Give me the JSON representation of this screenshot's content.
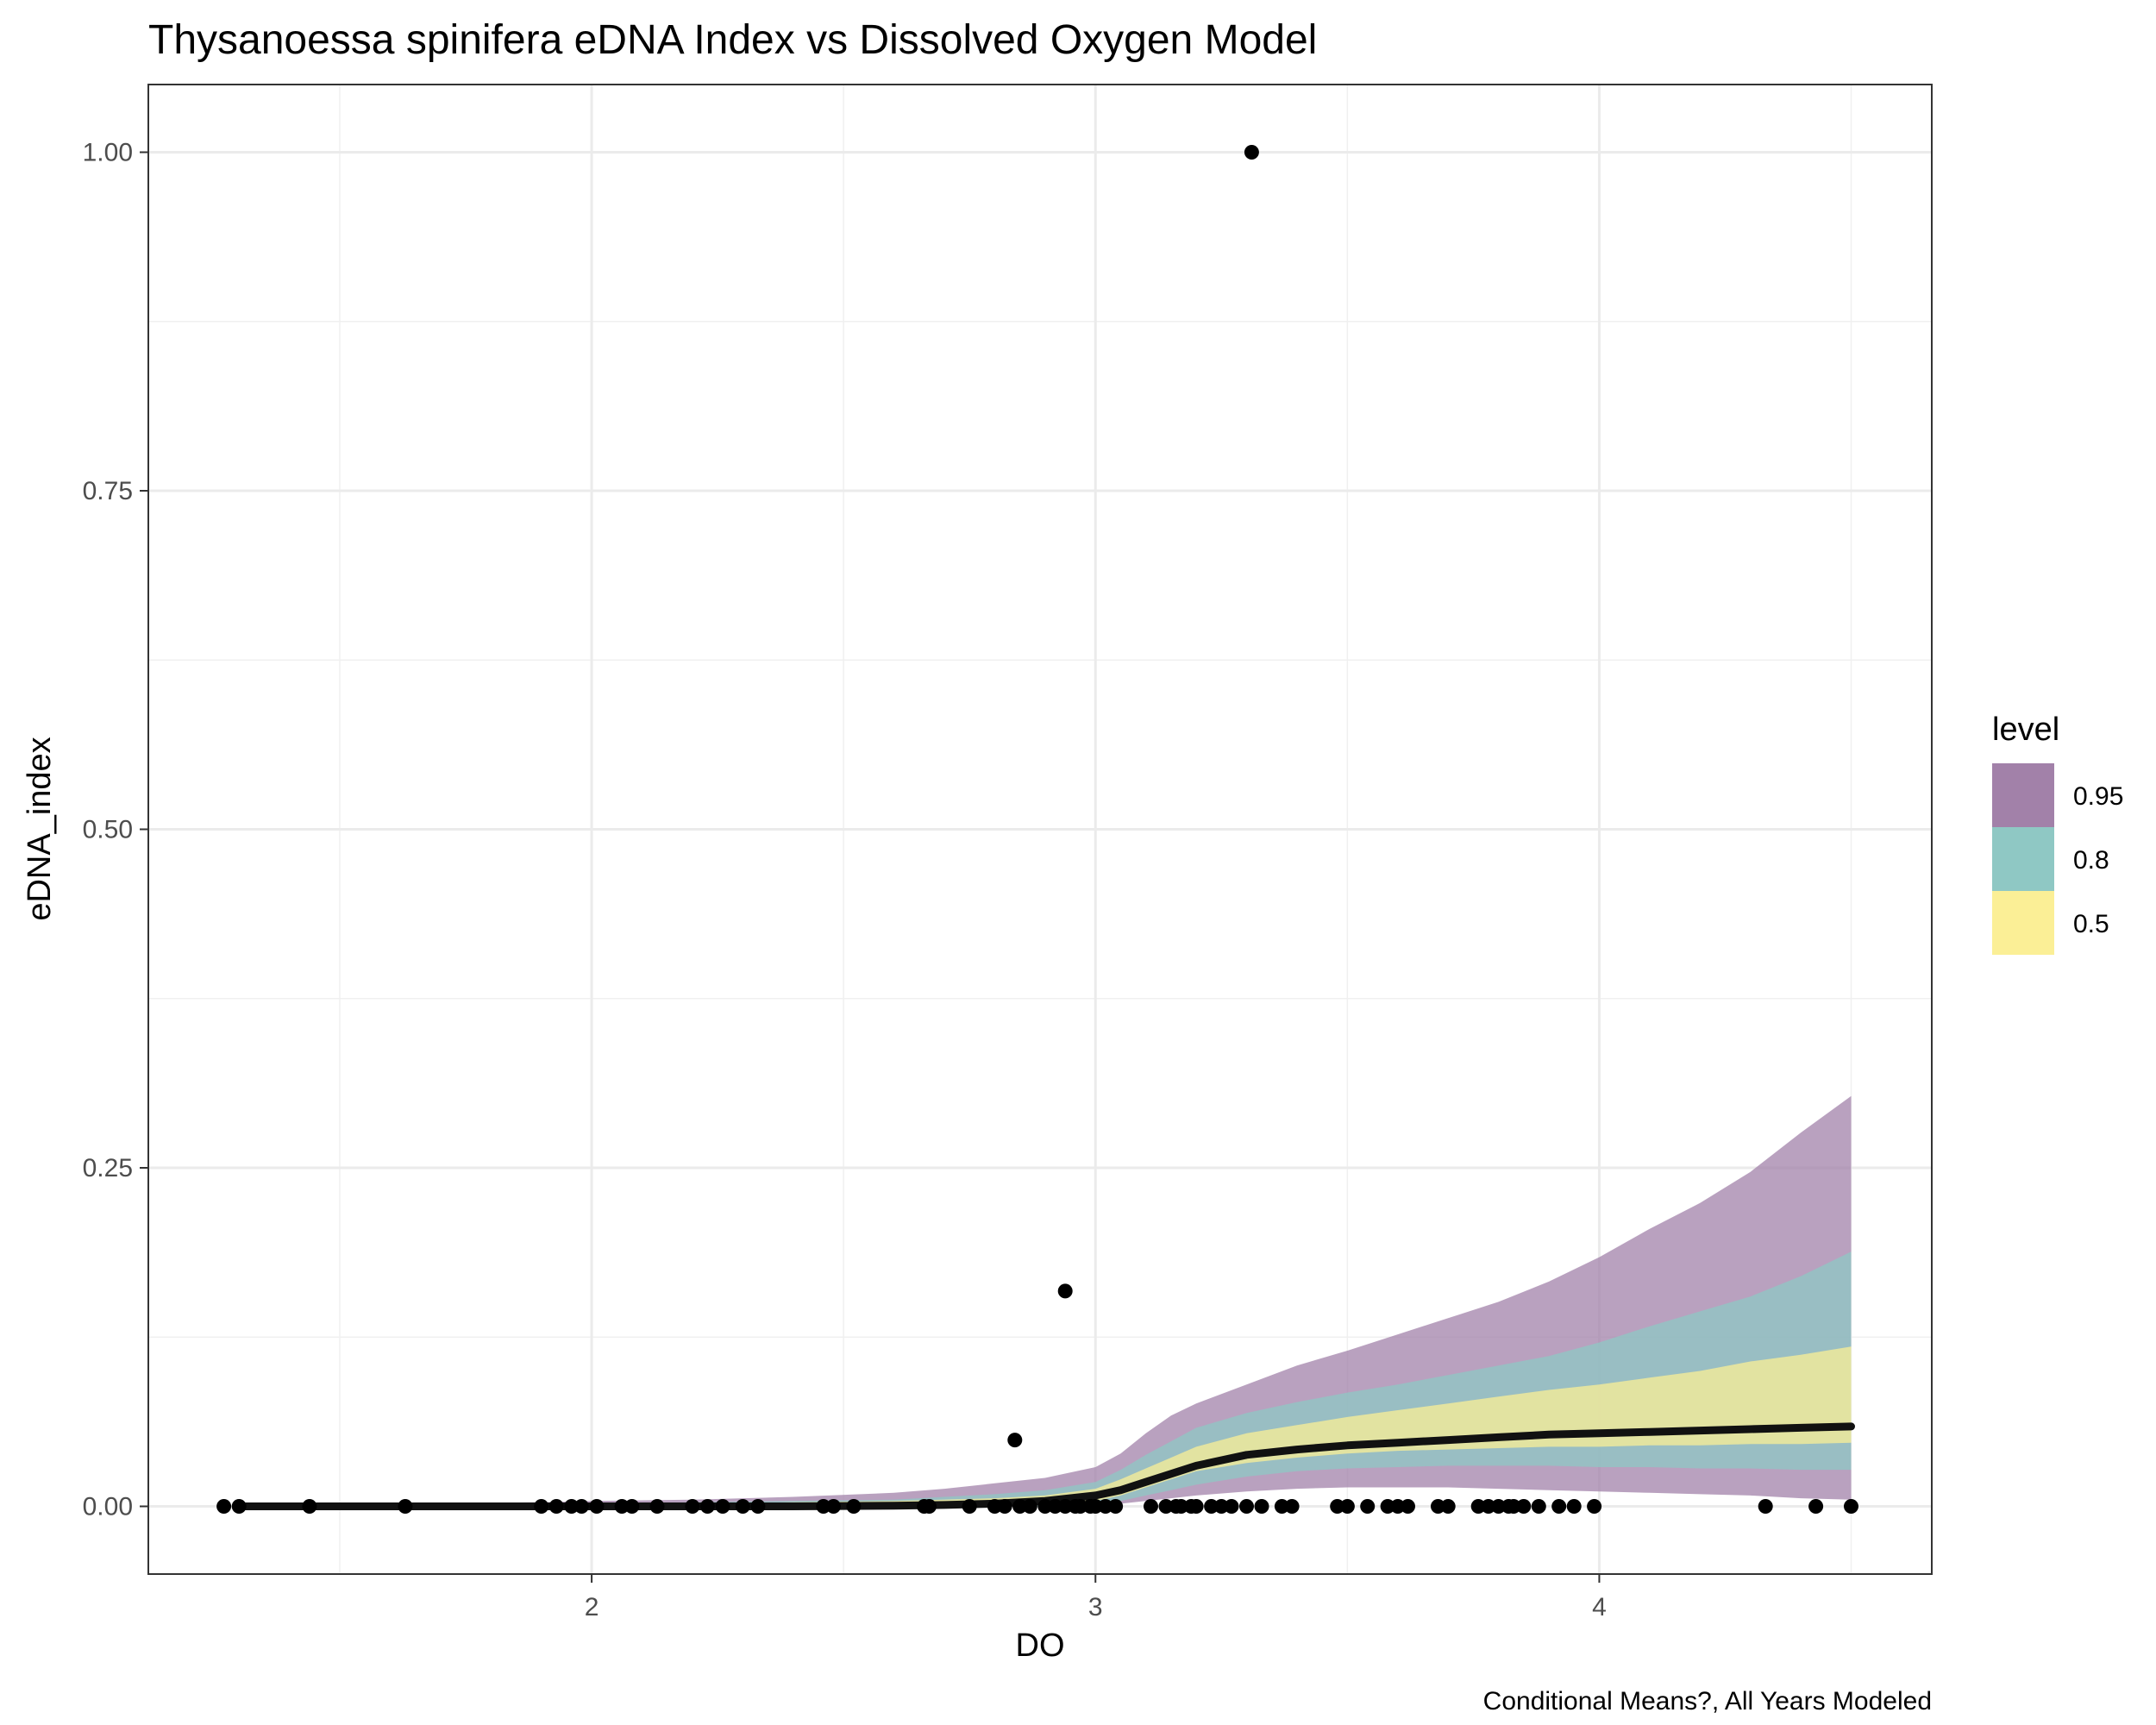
{
  "chart_data": {
    "type": "line",
    "title": "Thysanoessa spinifera eDNA Index vs Dissolved Oxygen Model",
    "xlabel": "DO",
    "ylabel": "eDNA_index",
    "caption": "Conditional Means?, All Years Modeled",
    "xlim": [
      1.12,
      4.66
    ],
    "ylim": [
      -0.05,
      1.05
    ],
    "x_ticks": [
      2,
      3,
      4
    ],
    "x_tick_labels": [
      "2",
      "3",
      "4"
    ],
    "y_ticks": [
      0,
      0.25,
      0.5,
      0.75,
      1.0
    ],
    "y_tick_labels": [
      "0.00",
      "0.25",
      "0.50",
      "0.75",
      "1.00"
    ],
    "grid": true,
    "legend": {
      "title": "level",
      "position": "right",
      "entries": [
        {
          "label": "0.95",
          "color": "#a281a9"
        },
        {
          "label": "0.8",
          "color": "#8fc8c4"
        },
        {
          "label": "0.5",
          "color": "#fbef96"
        }
      ]
    },
    "band_x": [
      1.3,
      1.6,
      1.9,
      2.0,
      2.2,
      2.4,
      2.6,
      2.7,
      2.8,
      2.9,
      3.0,
      3.05,
      3.1,
      3.15,
      3.2,
      3.3,
      3.4,
      3.5,
      3.6,
      3.7,
      3.8,
      3.9,
      4.0,
      4.1,
      4.2,
      4.3,
      4.4,
      4.5
    ],
    "bands": [
      {
        "level": "0.95",
        "color": "#a281a9",
        "lower": [
          0,
          0,
          0,
          0,
          0,
          0,
          0,
          0,
          0,
          0,
          0.001,
          0.002,
          0.004,
          0.006,
          0.008,
          0.011,
          0.013,
          0.014,
          0.014,
          0.014,
          0.013,
          0.012,
          0.011,
          0.01,
          0.009,
          0.008,
          0.006,
          0.005
        ],
        "upper": [
          0.001,
          0.002,
          0.003,
          0.004,
          0.005,
          0.007,
          0.01,
          0.013,
          0.017,
          0.021,
          0.029,
          0.039,
          0.054,
          0.067,
          0.076,
          0.09,
          0.104,
          0.115,
          0.127,
          0.139,
          0.151,
          0.166,
          0.184,
          0.205,
          0.224,
          0.247,
          0.276,
          0.303
        ]
      },
      {
        "level": "0.8",
        "color": "#8fc8c4",
        "lower": [
          0,
          0,
          0,
          0,
          0,
          0,
          0,
          0,
          0,
          0,
          0.002,
          0.004,
          0.008,
          0.012,
          0.016,
          0.022,
          0.026,
          0.028,
          0.029,
          0.03,
          0.03,
          0.03,
          0.029,
          0.029,
          0.028,
          0.028,
          0.027,
          0.027
        ],
        "upper": [
          0.0005,
          0.001,
          0.0015,
          0.002,
          0.003,
          0.004,
          0.005,
          0.007,
          0.009,
          0.012,
          0.018,
          0.027,
          0.038,
          0.048,
          0.058,
          0.069,
          0.077,
          0.084,
          0.09,
          0.097,
          0.104,
          0.111,
          0.121,
          0.133,
          0.144,
          0.155,
          0.17,
          0.188
        ]
      },
      {
        "level": "0.5",
        "color": "#fbef96",
        "lower": [
          0,
          0,
          0,
          0,
          0,
          0,
          0,
          0,
          0,
          0.001,
          0.004,
          0.008,
          0.014,
          0.02,
          0.026,
          0.032,
          0.036,
          0.039,
          0.041,
          0.042,
          0.043,
          0.044,
          0.044,
          0.045,
          0.045,
          0.046,
          0.046,
          0.047
        ],
        "upper": [
          0.0003,
          0.0005,
          0.001,
          0.0015,
          0.002,
          0.003,
          0.004,
          0.005,
          0.006,
          0.008,
          0.013,
          0.02,
          0.028,
          0.036,
          0.044,
          0.054,
          0.06,
          0.066,
          0.071,
          0.076,
          0.081,
          0.086,
          0.09,
          0.095,
          0.1,
          0.107,
          0.112,
          0.118
        ]
      }
    ],
    "mean_line": {
      "x": [
        1.3,
        1.6,
        1.9,
        2.0,
        2.2,
        2.4,
        2.6,
        2.7,
        2.8,
        2.9,
        3.0,
        3.05,
        3.1,
        3.15,
        3.2,
        3.3,
        3.4,
        3.5,
        3.6,
        3.7,
        3.8,
        3.9,
        4.0,
        4.1,
        4.2,
        4.3,
        4.4,
        4.5
      ],
      "y": [
        0,
        0,
        0,
        0,
        0,
        0,
        0.0005,
        0.001,
        0.002,
        0.004,
        0.008,
        0.012,
        0.018,
        0.024,
        0.03,
        0.038,
        0.042,
        0.045,
        0.047,
        0.049,
        0.051,
        0.053,
        0.054,
        0.055,
        0.056,
        0.057,
        0.058,
        0.059
      ],
      "color": "#111111"
    },
    "points": {
      "color": "#000000",
      "x": [
        1.27,
        1.3,
        1.44,
        1.63,
        1.9,
        1.93,
        1.96,
        1.98,
        2.01,
        2.06,
        2.08,
        2.13,
        2.2,
        2.23,
        2.26,
        2.3,
        2.33,
        2.46,
        2.48,
        2.52,
        2.66,
        2.67,
        2.75,
        2.8,
        2.82,
        2.85,
        2.87,
        2.9,
        2.92,
        2.94,
        2.96,
        2.97,
        2.99,
        3.0,
        3.02,
        3.04,
        3.11,
        3.14,
        3.16,
        3.17,
        3.19,
        3.2,
        3.23,
        3.25,
        3.27,
        3.3,
        3.33,
        3.37,
        3.39,
        3.48,
        3.5,
        3.54,
        3.58,
        3.6,
        3.62,
        3.68,
        3.7,
        3.76,
        3.78,
        3.8,
        3.82,
        3.83,
        3.85,
        3.88,
        3.92,
        3.95,
        3.99,
        4.33,
        4.43,
        4.5,
        2.84,
        2.94,
        3.31
      ],
      "y": [
        0,
        0,
        0,
        0,
        0,
        0,
        0,
        0,
        0,
        0,
        0,
        0,
        0,
        0,
        0,
        0,
        0,
        0,
        0,
        0,
        0,
        0,
        0,
        0,
        0,
        0,
        0,
        0,
        0,
        0,
        0,
        0,
        0,
        0,
        0,
        0,
        0,
        0,
        0,
        0,
        0,
        0,
        0,
        0,
        0,
        0,
        0,
        0,
        0,
        0,
        0,
        0,
        0,
        0,
        0,
        0,
        0,
        0,
        0,
        0,
        0,
        0,
        0,
        0,
        0,
        0,
        0,
        0,
        0,
        0,
        0.049,
        0.159,
        1.0
      ]
    }
  }
}
